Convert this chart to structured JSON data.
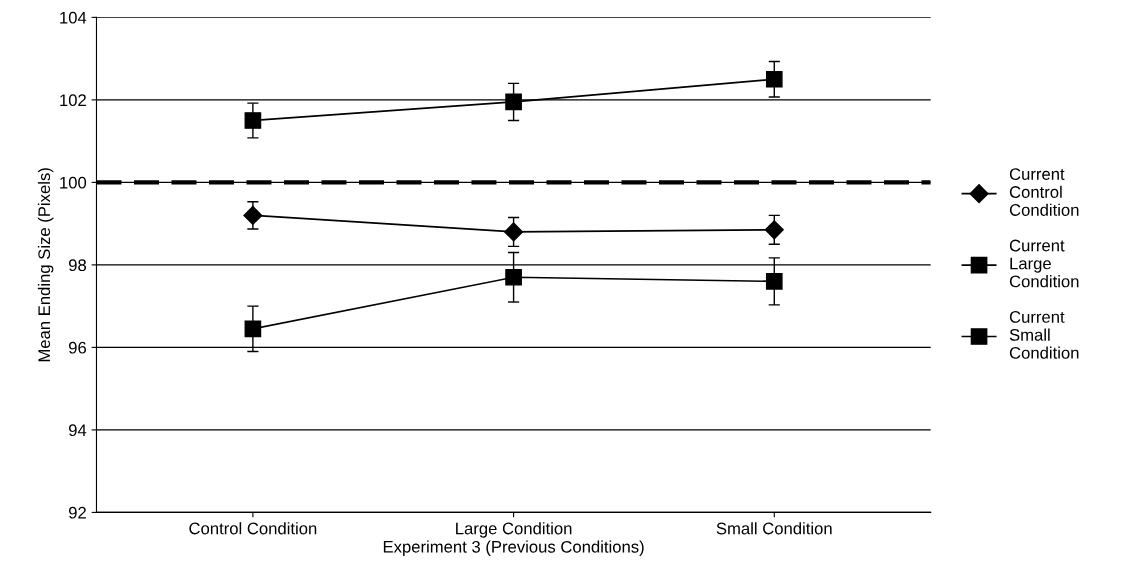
{
  "chart_data": {
    "type": "line",
    "xlabel": "Experiment 3 (Previous Conditions)",
    "ylabel": "Mean Ending Size (Pixels)",
    "categories": [
      "Control Condition",
      "Large Condition",
      "Small Condition"
    ],
    "series": [
      {
        "name": "Current Control Condition",
        "color": "#000000",
        "marker": "diamond",
        "values": [
          99.2,
          98.8,
          98.85
        ],
        "errors": [
          0.33,
          0.35,
          0.35
        ]
      },
      {
        "name": "Current Large Condition",
        "color": "#000000",
        "marker": "square",
        "values": [
          101.5,
          101.95,
          102.5
        ],
        "errors": [
          0.42,
          0.45,
          0.43
        ]
      },
      {
        "name": "Current Small Condition",
        "color": "#000000",
        "marker": "square",
        "values": [
          96.45,
          97.7,
          97.6
        ],
        "errors": [
          0.55,
          0.6,
          0.57
        ]
      }
    ],
    "ylim": [
      92,
      104
    ],
    "yticks": [
      92,
      94,
      96,
      98,
      100,
      102,
      104
    ],
    "grid": "y",
    "legend": "right",
    "ref_lines": [
      {
        "axis": "y",
        "value": 100,
        "color": "#000000",
        "line_style": "dashed"
      }
    ]
  }
}
